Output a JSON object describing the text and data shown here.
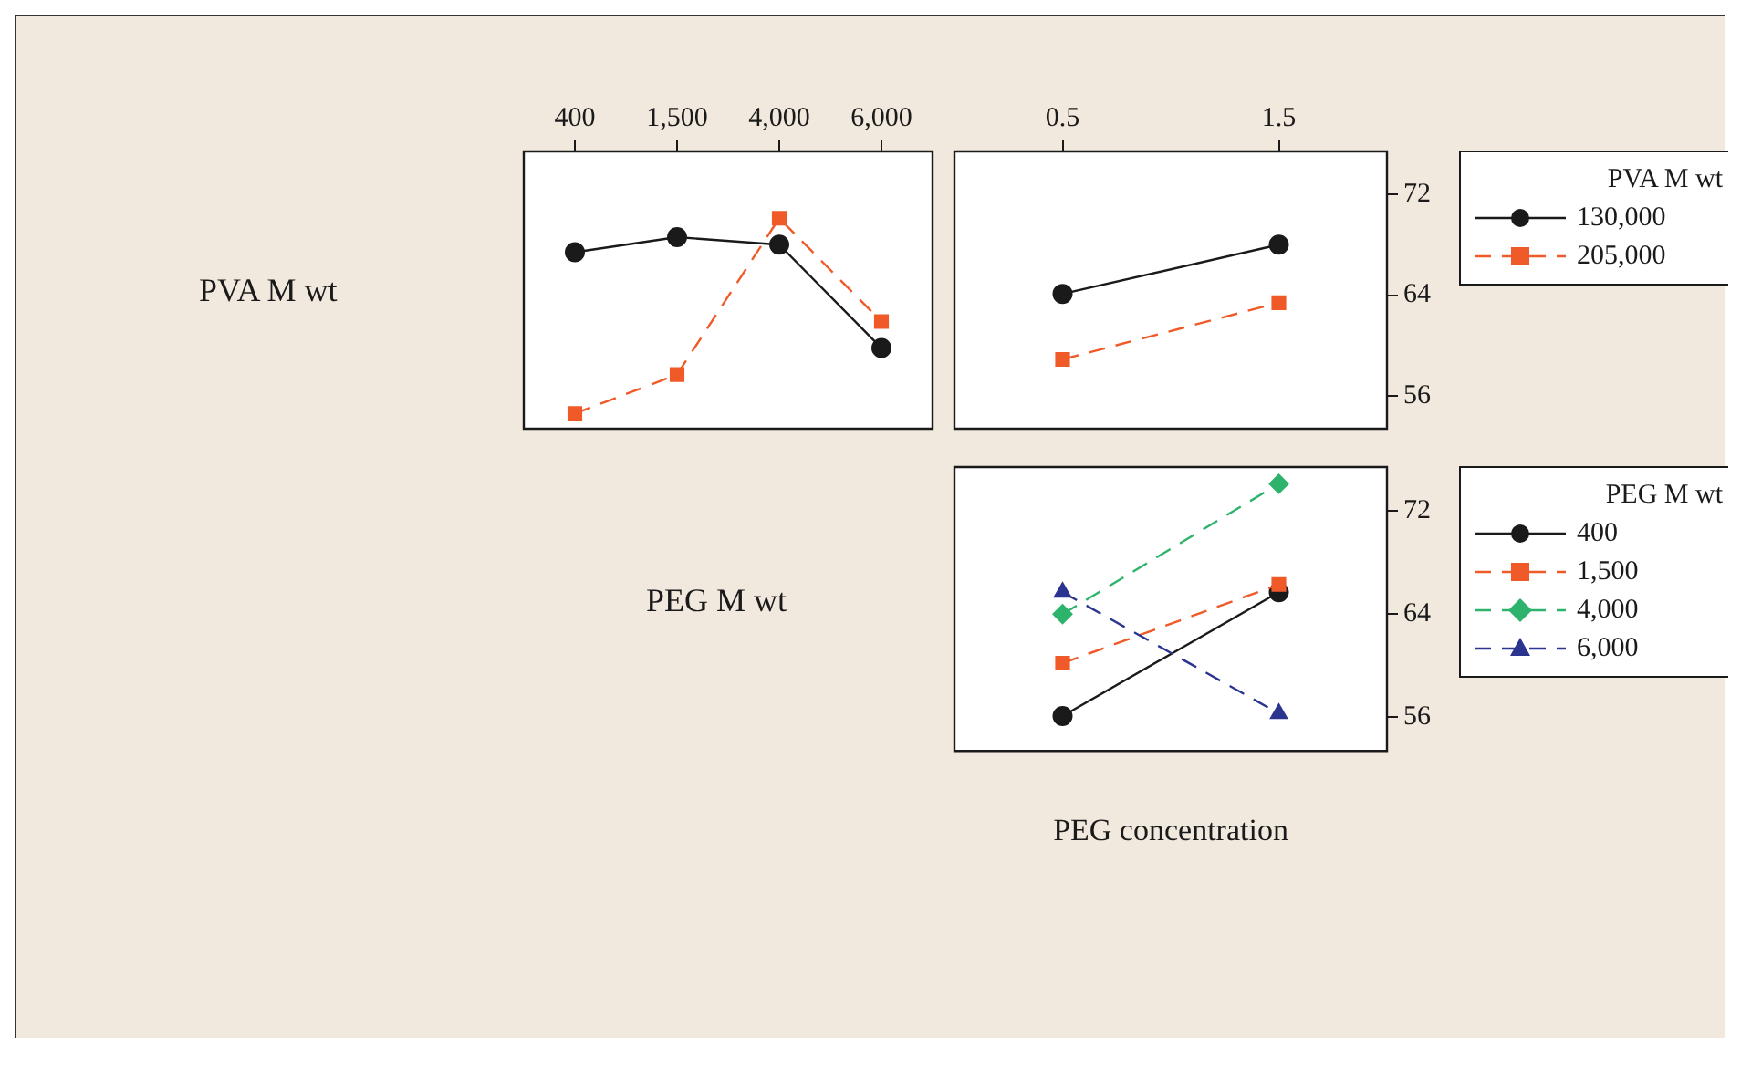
{
  "chart_data": [
    {
      "type": "line",
      "ylabel": "PVA M wt",
      "categories": [
        "400",
        "1,500",
        "4,000",
        "6,000"
      ],
      "ylim": [
        53.4,
        75.4
      ],
      "tick_labels": "x",
      "legend": false,
      "series": [
        {
          "color": "#1a1a1a",
          "marker": "circle",
          "line_style": "solid",
          "values": [
            67.4,
            68.6,
            68.0,
            59.8
          ]
        },
        {
          "color": "#f05a28",
          "marker": "square",
          "line_style": "dashed",
          "values": [
            54.6,
            57.7,
            70.1,
            61.9
          ]
        }
      ]
    },
    {
      "type": "line",
      "legend_title": "PVA M wt",
      "categories": [
        "0.5",
        "1.5"
      ],
      "ylim": [
        53.4,
        75.4
      ],
      "yticks": [
        56,
        64,
        72
      ],
      "legend": "right",
      "series": [
        {
          "name": "130,000",
          "color": "#1a1a1a",
          "marker": "circle",
          "line_style": "solid",
          "values": [
            64.1,
            68.0
          ]
        },
        {
          "name": "205,000",
          "color": "#f05a28",
          "marker": "square",
          "line_style": "dashed",
          "values": [
            58.9,
            63.4
          ]
        }
      ]
    },
    {
      "type": "line",
      "ylabel": "PEG M wt",
      "xlabel": "PEG concentration",
      "legend_title": "PEG M wt",
      "categories": [
        "0.5",
        "1.5"
      ],
      "ylim": [
        53.4,
        75.4
      ],
      "yticks": [
        56,
        64,
        72
      ],
      "tick_labels": "y",
      "legend": "right",
      "series": [
        {
          "name": "400",
          "color": "#1a1a1a",
          "marker": "circle",
          "line_style": "solid",
          "values": [
            56.1,
            65.7
          ]
        },
        {
          "name": "1,500",
          "color": "#f05a28",
          "marker": "square",
          "line_style": "dashed",
          "values": [
            60.2,
            66.3
          ]
        },
        {
          "name": "4,000",
          "color": "#2db36b",
          "marker": "diamond",
          "line_style": "dashed",
          "values": [
            64.0,
            74.1
          ]
        },
        {
          "name": "6,000",
          "color": "#2b3590",
          "marker": "triangle",
          "line_style": "dashed",
          "values": [
            65.7,
            56.3
          ]
        }
      ]
    }
  ]
}
